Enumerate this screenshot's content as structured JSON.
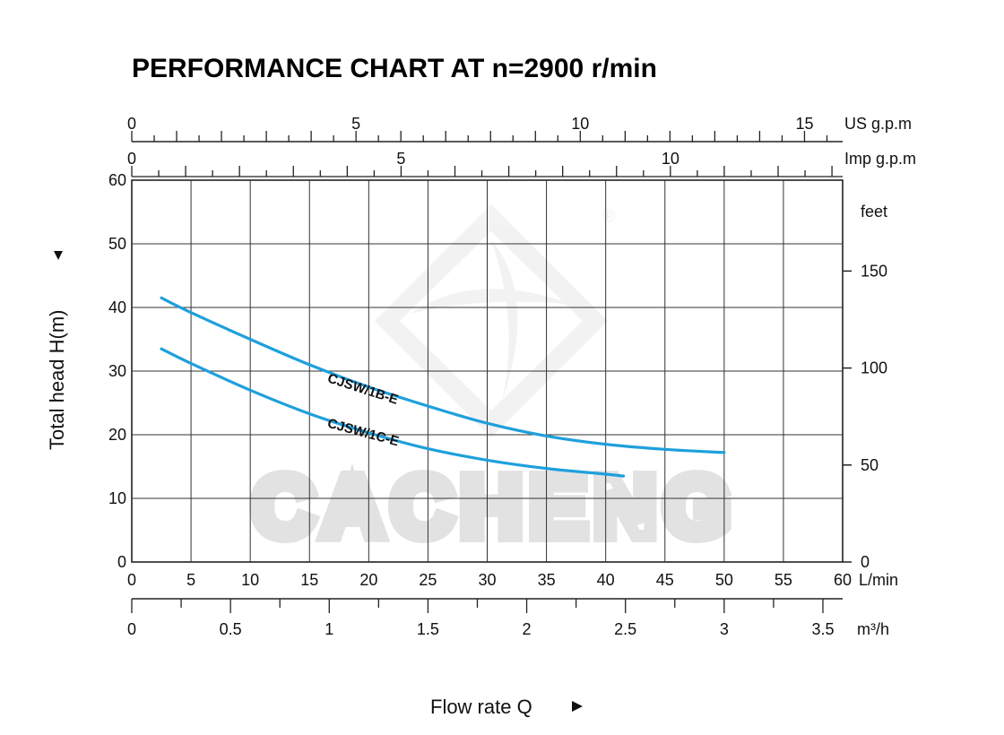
{
  "chart_data": {
    "type": "line",
    "title": "PERFORMANCE CHART AT n=2900 r/min",
    "xlabel": "Flow rate  Q",
    "ylabel": "Total  head H(m)",
    "x_unit": "L/min",
    "xlim": [
      0,
      60
    ],
    "ylim": [
      0,
      60
    ],
    "x_ticks": [
      0,
      5,
      10,
      15,
      20,
      25,
      30,
      35,
      40,
      45,
      50,
      55,
      60
    ],
    "y_ticks": [
      0,
      10,
      20,
      30,
      40,
      50,
      60
    ],
    "grid": true,
    "secondary_axes": {
      "m3h": {
        "unit": "m³/h",
        "ticks": [
          0,
          0.5,
          1,
          1.5,
          2,
          2.5,
          3,
          3.5
        ],
        "labels": [
          "0",
          "0.5",
          "1",
          "1.5",
          "2",
          "2.5",
          "3",
          "3.5"
        ]
      },
      "us_gpm": {
        "unit": "US g.p.m",
        "ticks": [
          0,
          5,
          10,
          15
        ]
      },
      "imp_gpm": {
        "unit": "Imp g.p.m",
        "ticks": [
          0,
          5,
          10
        ]
      },
      "feet": {
        "unit": "feet",
        "ticks": [
          0,
          50,
          100,
          150
        ]
      }
    },
    "series": [
      {
        "name": "CJSW/1B-E",
        "color": "#1ea0dc",
        "x": [
          2.5,
          5,
          10,
          15,
          20,
          25,
          30,
          35,
          40,
          45,
          50
        ],
        "y": [
          41.5,
          39.2,
          35.0,
          31.0,
          27.5,
          24.5,
          21.8,
          19.8,
          18.5,
          17.7,
          17.2
        ]
      },
      {
        "name": "CJSW/1C-E",
        "color": "#1ea0dc",
        "x": [
          2.5,
          5,
          10,
          15,
          20,
          25,
          30,
          35,
          40,
          41.5
        ],
        "y": [
          33.5,
          31.2,
          27.0,
          23.3,
          20.3,
          17.8,
          16.0,
          14.7,
          13.8,
          13.5
        ]
      }
    ]
  },
  "watermark": {
    "text": "CACHENG",
    "registered": "®"
  }
}
